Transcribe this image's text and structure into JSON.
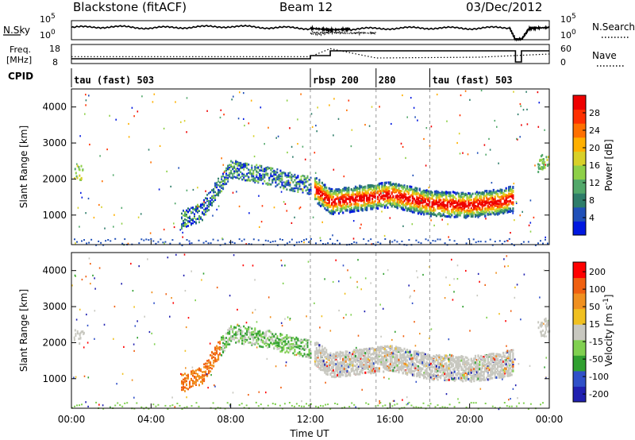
{
  "header": {
    "station": "Blackstone (fitACF)",
    "beam": "Beam 12",
    "date": "03/Dec/2012"
  },
  "labels": {
    "nsky": "N.Sky",
    "freq_line1": "Freq.",
    "freq_line2": "[MHz]",
    "cpid": "CPID",
    "nsearch": "N.Search",
    "nave": "Nave"
  },
  "chart_data": [
    {
      "type": "line",
      "name": "noise-panel",
      "left_axis": {
        "ticks": [
          "10^5",
          "10^0"
        ]
      },
      "right_axis": {
        "ticks": [
          "10^5",
          "10^0"
        ]
      },
      "series": [
        {
          "name": "N.Sky",
          "x": [
            0,
            2,
            4,
            6,
            8,
            10,
            12,
            13,
            14,
            16,
            18,
            20,
            22,
            22.3,
            22.6,
            23,
            24
          ],
          "y": [
            3.2,
            3.4,
            3.1,
            3.3,
            3.5,
            3.2,
            3.0,
            2.6,
            2.8,
            3.0,
            3.1,
            3.0,
            3.2,
            0,
            0,
            3.0,
            3.2
          ]
        },
        {
          "name": "N.Search",
          "x": [
            12.0,
            12.5,
            13.0,
            14.0,
            15.0,
            15.3
          ],
          "y": [
            1.8,
            1.6,
            1.9,
            1.7,
            1.8,
            1.7
          ]
        }
      ]
    },
    {
      "type": "line",
      "name": "freq-panel",
      "left_axis": {
        "ticks": [
          "18",
          "8"
        ]
      },
      "right_axis": {
        "ticks": [
          "60",
          "0"
        ]
      },
      "series": [
        {
          "name": "Freq",
          "x": [
            0,
            12.0,
            12.0,
            13.0,
            13.0,
            22.3,
            22.3,
            22.6,
            22.6,
            24
          ],
          "y": [
            10,
            10,
            12,
            12,
            15,
            15,
            8,
            8,
            15,
            15
          ]
        },
        {
          "name": "Nave",
          "x": [
            0,
            12.0,
            13.0,
            15.3,
            20.5,
            24
          ],
          "y": [
            20,
            20,
            50,
            15,
            18,
            30
          ]
        }
      ]
    },
    {
      "type": "table",
      "name": "cpid-strip",
      "entries": [
        {
          "label": "tau (fast) 503",
          "start": 0
        },
        {
          "label": "rbsp 200",
          "start": 12.0
        },
        {
          "label": "280",
          "start": 15.3
        },
        {
          "label": "tau (fast) 503",
          "start": 18.0
        }
      ]
    },
    {
      "type": "heatmap",
      "name": "power-panel",
      "ylabel": "Slant Range [km]",
      "ylim": [
        180,
        4500
      ],
      "yticks": [
        1000,
        2000,
        3000,
        4000
      ],
      "xlim": [
        0,
        24
      ],
      "colorbar": {
        "label": "Power [dB]",
        "ticks": [
          "4",
          "8",
          "12",
          "16",
          "20",
          "24",
          "28"
        ],
        "colors": [
          "#0018e0",
          "#2050b8",
          "#2e7d6a",
          "#52a86a",
          "#8ed048",
          "#d8d028",
          "#ffb000",
          "#ff7000",
          "#ff3000",
          "#ee0000"
        ]
      },
      "features": [
        {
          "name": "main-band",
          "hours": [
            12.2,
            13.0,
            14.5,
            16.0,
            18.0,
            20.0,
            21.5,
            22.2
          ],
          "range_km": [
            1750,
            1400,
            1500,
            1600,
            1350,
            1300,
            1400,
            1500
          ]
        },
        {
          "name": "rising-band",
          "hours": [
            5.5,
            6.5,
            7.2,
            8.0,
            9.0,
            10.0,
            11.0,
            12.0
          ],
          "range_km": [
            900,
            1100,
            1700,
            2300,
            2200,
            2100,
            1950,
            1850
          ]
        }
      ]
    },
    {
      "type": "heatmap",
      "name": "velocity-panel",
      "ylabel": "Slant Range [km]",
      "ylim": [
        180,
        4500
      ],
      "yticks": [
        1000,
        2000,
        3000,
        4000
      ],
      "xlim": [
        0,
        24
      ],
      "xticks": [
        "00:00",
        "04:00",
        "08:00",
        "12:00",
        "16:00",
        "20:00",
        "00:00"
      ],
      "xlabel": "Time UT",
      "colorbar": {
        "label": "Velocity [m s^-1]",
        "ticks": [
          "200",
          "100",
          "50",
          "15",
          "-15",
          "-50",
          "-100",
          "-200"
        ],
        "colors": [
          "#2020b0",
          "#3050c8",
          "#30a030",
          "#80d050",
          "#c8c8c0",
          "#f0c020",
          "#f09020",
          "#f06010",
          "#ff0000"
        ]
      }
    }
  ]
}
